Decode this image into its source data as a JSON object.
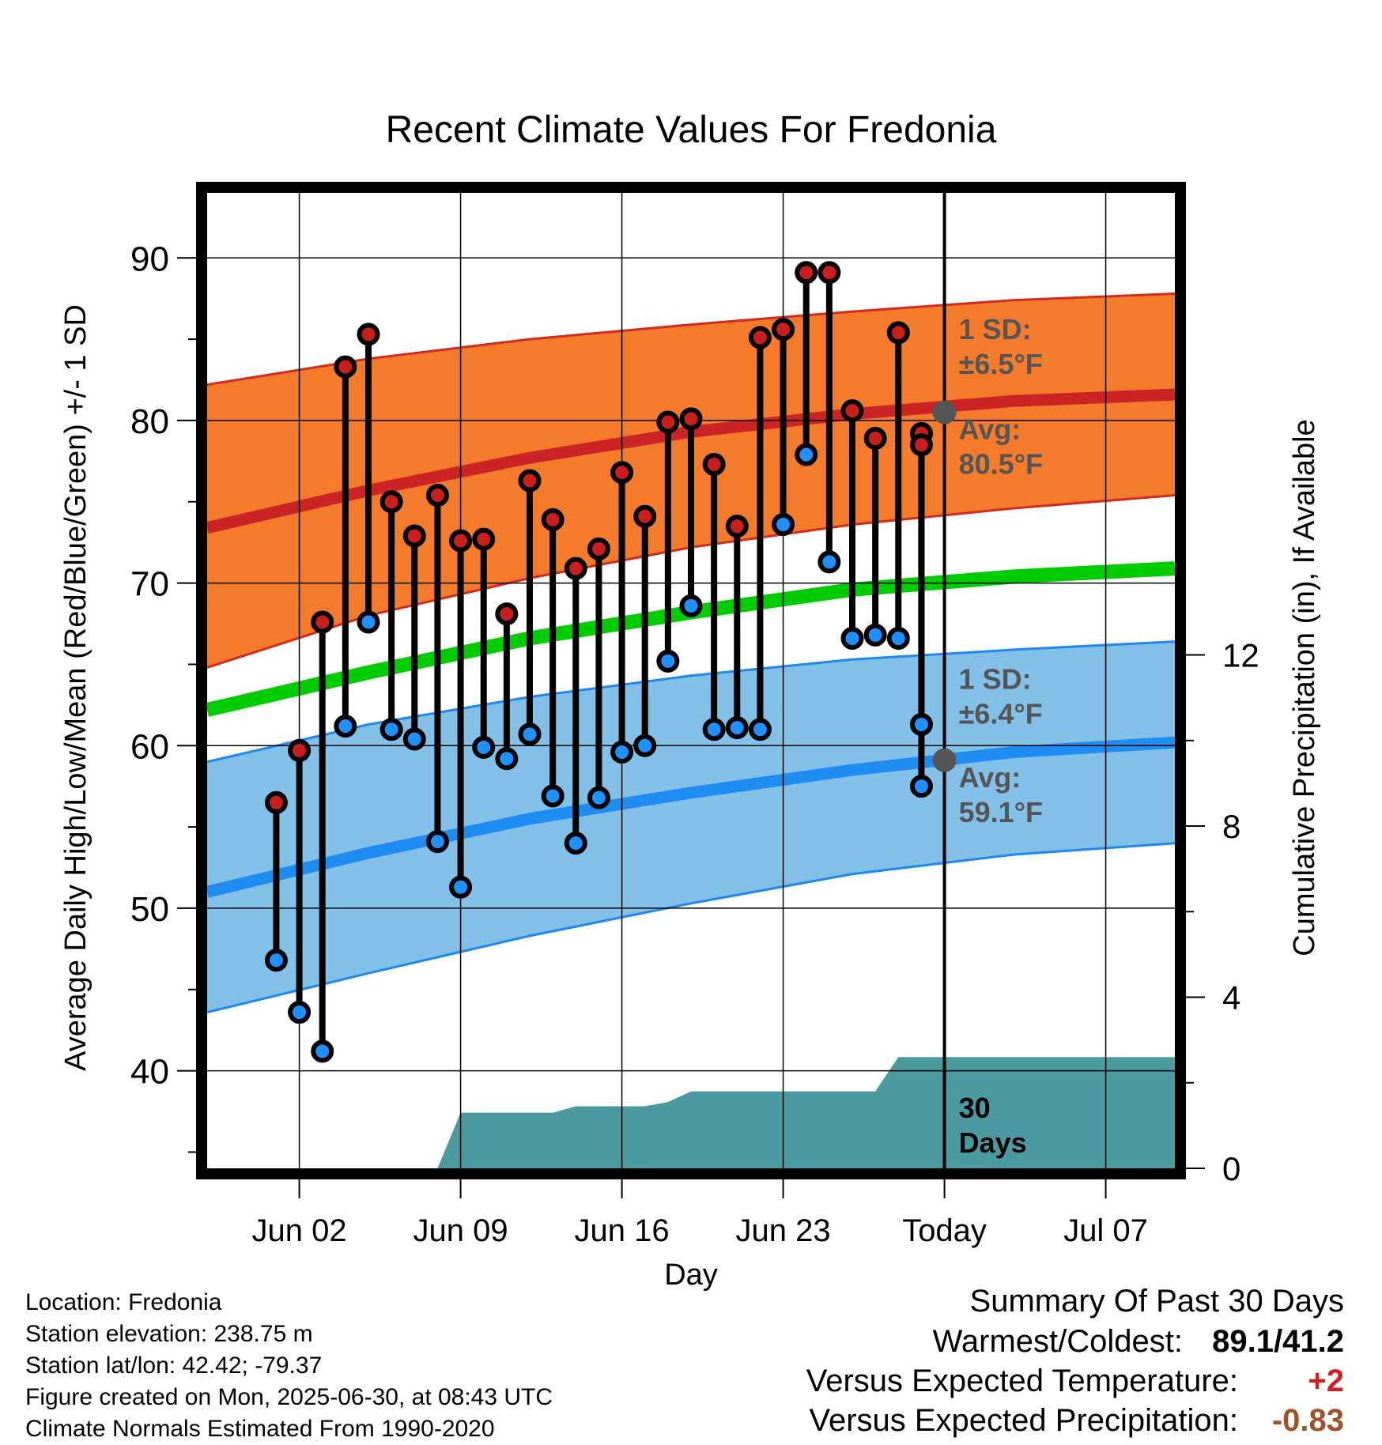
{
  "chart_data": {
    "type": "line",
    "title": "Recent Climate Values For Fredonia",
    "xlabel": "Day",
    "ylabel": "Average Daily High/Low/Mean (Red/Blue/Green) +/- 1 SD",
    "y2label": "Cumulative Precipitation (in), If Available",
    "ylim": [
      34,
      94
    ],
    "y2lim": [
      0,
      22.8
    ],
    "yticks": [
      40,
      50,
      60,
      70,
      80,
      90
    ],
    "y2ticks": [
      0,
      4,
      8,
      12
    ],
    "xlim": [
      "2025-05-29",
      "2025-07-10"
    ],
    "grid": true,
    "xticks": [
      {
        "date": "2025-06-02",
        "label": "Jun 02"
      },
      {
        "date": "2025-06-09",
        "label": "Jun 09"
      },
      {
        "date": "2025-06-16",
        "label": "Jun 16"
      },
      {
        "date": "2025-06-23",
        "label": "Jun 23"
      },
      {
        "date": "2025-06-30",
        "label": "Today"
      },
      {
        "date": "2025-07-07",
        "label": "Jul 07"
      }
    ],
    "today": "2025-06-30",
    "normals": {
      "dates": [
        "2025-05-29",
        "2025-06-05",
        "2025-06-12",
        "2025-06-19",
        "2025-06-26",
        "2025-07-03",
        "2025-07-10"
      ],
      "high_avg": [
        73.4,
        75.7,
        77.7,
        79.3,
        80.4,
        81.2,
        81.6
      ],
      "high_sd_upper": [
        82.2,
        83.8,
        85.0,
        85.9,
        86.7,
        87.4,
        87.8
      ],
      "high_sd_lower": [
        64.8,
        68.0,
        70.3,
        72.2,
        73.6,
        74.6,
        75.4
      ],
      "low_avg": [
        51.0,
        53.4,
        55.5,
        57.1,
        58.5,
        59.6,
        60.2
      ],
      "low_sd_upper": [
        59.0,
        61.3,
        63.0,
        64.3,
        65.3,
        65.9,
        66.4
      ],
      "low_sd_lower": [
        43.6,
        46.0,
        48.3,
        50.3,
        52.1,
        53.3,
        54.0
      ],
      "mean_avg": [
        62.2,
        64.5,
        66.6,
        68.2,
        69.6,
        70.4,
        70.9
      ]
    },
    "series": [
      {
        "name": "High",
        "color": "#c81e1e",
        "x": [
          "2025-06-01",
          "2025-06-02",
          "2025-06-03",
          "2025-06-04",
          "2025-06-05",
          "2025-06-06",
          "2025-06-07",
          "2025-06-08",
          "2025-06-09",
          "2025-06-10",
          "2025-06-11",
          "2025-06-12",
          "2025-06-13",
          "2025-06-14",
          "2025-06-15",
          "2025-06-16",
          "2025-06-17",
          "2025-06-18",
          "2025-06-19",
          "2025-06-20",
          "2025-06-21",
          "2025-06-22",
          "2025-06-23",
          "2025-06-24",
          "2025-06-25",
          "2025-06-26",
          "2025-06-27",
          "2025-06-28",
          "2025-06-29"
        ],
        "values": [
          56.5,
          59.7,
          67.6,
          83.3,
          85.3,
          75.0,
          72.9,
          75.4,
          72.6,
          72.7,
          68.1,
          76.3,
          73.9,
          70.9,
          72.1,
          76.8,
          74.1,
          79.9,
          80.1,
          77.3,
          73.5,
          85.1,
          85.6,
          89.1,
          89.1,
          80.6,
          78.9,
          85.4,
          79.2
        ]
      },
      {
        "name": "Low",
        "color": "#1e90ff",
        "x": [
          "2025-06-01",
          "2025-06-02",
          "2025-06-03",
          "2025-06-04",
          "2025-06-05",
          "2025-06-06",
          "2025-06-07",
          "2025-06-08",
          "2025-06-09",
          "2025-06-10",
          "2025-06-11",
          "2025-06-12",
          "2025-06-13",
          "2025-06-14",
          "2025-06-15",
          "2025-06-16",
          "2025-06-17",
          "2025-06-18",
          "2025-06-19",
          "2025-06-20",
          "2025-06-21",
          "2025-06-22",
          "2025-06-23",
          "2025-06-24",
          "2025-06-25",
          "2025-06-26",
          "2025-06-27",
          "2025-06-28",
          "2025-06-29"
        ],
        "values": [
          46.8,
          43.6,
          41.2,
          61.2,
          67.6,
          61.0,
          60.4,
          54.1,
          51.3,
          59.9,
          59.2,
          60.7,
          56.9,
          54.0,
          56.8,
          59.6,
          60.0,
          65.2,
          68.6,
          61.0,
          61.1,
          61.0,
          73.6,
          77.9,
          71.3,
          66.6,
          66.8,
          66.6,
          61.3
        ]
      }
    ],
    "extra_points": [
      {
        "date": "2025-06-30",
        "high": 78.5,
        "low": 57.5
      }
    ],
    "precipitation": {
      "color": "#4a9aa0",
      "x": [
        "2025-05-29",
        "2025-06-07",
        "2025-06-08",
        "2025-06-09",
        "2025-06-13",
        "2025-06-14",
        "2025-06-17",
        "2025-06-18",
        "2025-06-19",
        "2025-06-27",
        "2025-06-28",
        "2025-07-10"
      ],
      "values": [
        0,
        0,
        0,
        1.3,
        1.3,
        1.45,
        1.45,
        1.55,
        1.8,
        1.8,
        2.6,
        2.6
      ]
    },
    "annotations": {
      "high_sd_label": "1 SD:",
      "high_sd_value": "±6.5°F",
      "high_avg_label": "Avg:",
      "high_avg_value": "80.5°F",
      "high_avg_marker": 80.5,
      "low_sd_label": "1 SD:",
      "low_sd_value": "±6.4°F",
      "low_avg_label": "Avg:",
      "low_avg_value": "59.1°F",
      "low_avg_marker": 59.1,
      "days_line1": "30",
      "days_line2": "Days"
    }
  },
  "footer": {
    "location": "Location: Fredonia",
    "elevation": "Station elevation: 238.75 m",
    "latlon": "Station lat/lon: 42.42; -79.37",
    "created": "Figure created on Mon, 2025-06-30, at 08:43 UTC",
    "normals": "Climate Normals Estimated From 1990-2020"
  },
  "summary": {
    "title": "Summary Of Past 30 Days",
    "warmest_label": "Warmest/Coldest:",
    "warmest_value": "89.1/41.2",
    "temp_label": "Versus Expected Temperature:",
    "temp_value": "+2",
    "temp_color": "#d02020",
    "precip_label": "Versus Expected Precipitation:",
    "precip_value": "-0.83",
    "precip_color": "#a0522d"
  }
}
